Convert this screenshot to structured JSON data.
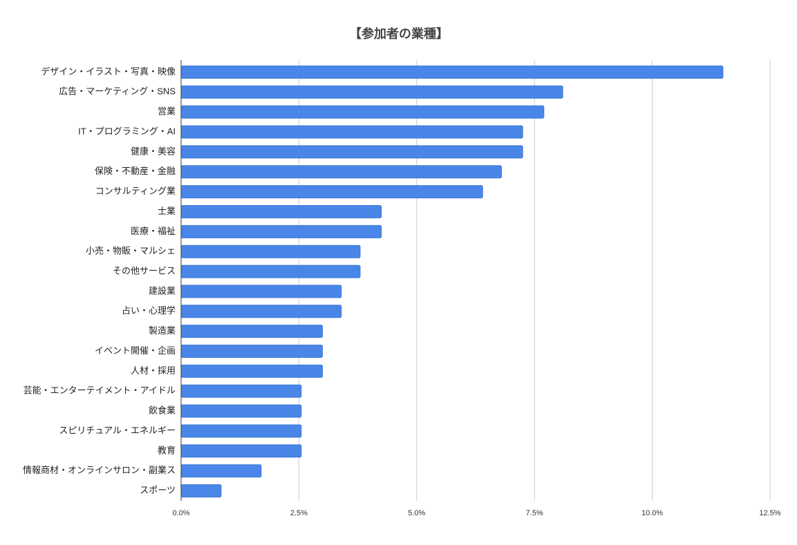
{
  "chart_data": {
    "type": "hbar",
    "title": "【参加者の業種】",
    "categories": [
      "デザイン・イラスト・写真・映像",
      "広告・マーケティング・SNS",
      "営業",
      "IT・プログラミング・AI",
      "健康・美容",
      "保険・不動産・金融",
      "コンサルティング業",
      "士業",
      "医療・福祉",
      "小売・物販・マルシェ",
      "その他サービス",
      "建設業",
      "占い・心理学",
      "製造業",
      "イベント開催・企画",
      "人材・採用",
      "芸能・エンターテイメント・アイドル",
      "飲食業",
      "スピリチュアル・エネルギー",
      "教育",
      "情報商材・オンラインサロン・副業ス",
      "スポーツ"
    ],
    "values": [
      11.5,
      8.1,
      7.7,
      7.25,
      7.25,
      6.8,
      6.4,
      4.25,
      4.25,
      3.8,
      3.8,
      3.4,
      3.4,
      3.0,
      3.0,
      3.0,
      2.55,
      2.55,
      2.55,
      2.55,
      1.7,
      0.85
    ],
    "color": "#4a86e8",
    "xlim": [
      0,
      12.5
    ],
    "xticks": [
      {
        "value": 0,
        "label": "0.0%"
      },
      {
        "value": 2.5,
        "label": "2.5%"
      },
      {
        "value": 5,
        "label": "5.0%"
      },
      {
        "value": 7.5,
        "label": "7.5%"
      },
      {
        "value": 10,
        "label": "10.0%"
      },
      {
        "value": 12.5,
        "label": "12.5%"
      }
    ],
    "grid": true
  }
}
